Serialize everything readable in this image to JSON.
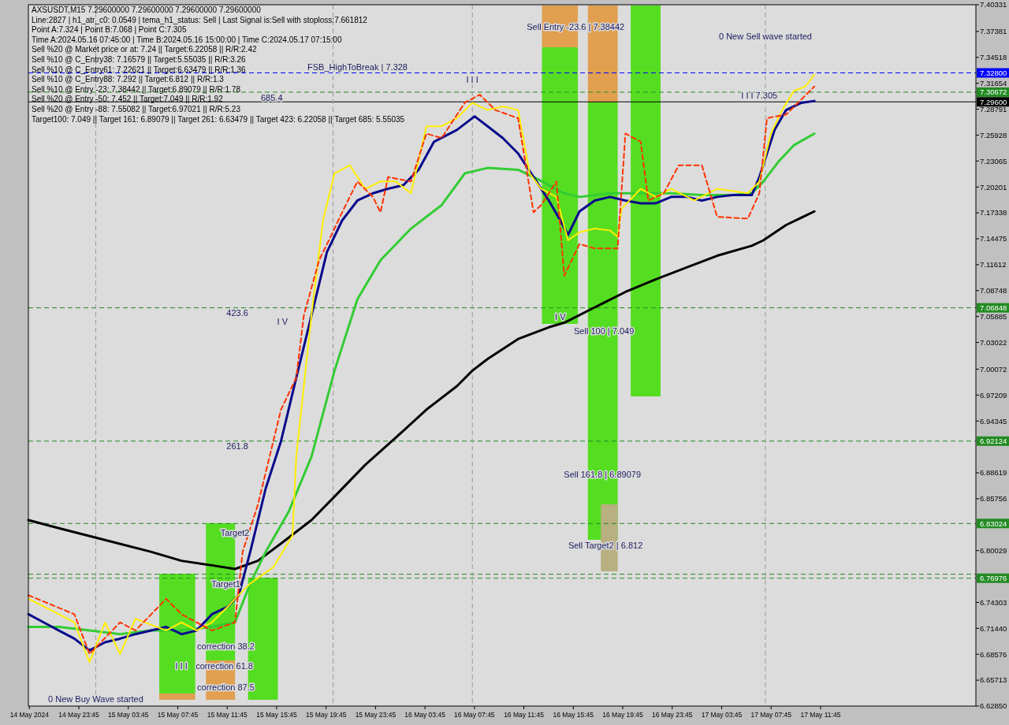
{
  "chart_data": {
    "type": "line",
    "title": "AXSUSDT,M15  7.29600000 7.29600000 7.29600000 7.29600000",
    "xlim": [
      "2024-05-14T19:40",
      "2024-05-18T00:19"
    ],
    "xticks": [
      {
        "value": "2024-05-14T19:45",
        "label": "14 May 2024"
      },
      {
        "value": "2024-05-14T23:45",
        "label": "14 May 23:45"
      },
      {
        "value": "2024-05-15T03:45",
        "label": "15 May 03:45"
      },
      {
        "value": "2024-05-15T07:45",
        "label": "15 May 07:45"
      },
      {
        "value": "2024-05-15T11:45",
        "label": "15 May 11:45"
      },
      {
        "value": "2024-05-15T15:45",
        "label": "15 May 15:45"
      },
      {
        "value": "2024-05-15T19:45",
        "label": "15 May 19:45"
      },
      {
        "value": "2024-05-15T23:45",
        "label": "15 May 23:45"
      },
      {
        "value": "2024-05-16T03:45",
        "label": "16 May 03:45"
      },
      {
        "value": "2024-05-16T07:45",
        "label": "16 May 07:45"
      },
      {
        "value": "2024-05-16T11:45",
        "label": "16 May 11:45"
      },
      {
        "value": "2024-05-16T15:45",
        "label": "16 May 15:45"
      },
      {
        "value": "2024-05-16T19:45",
        "label": "16 May 19:45"
      },
      {
        "value": "2024-05-16T23:45",
        "label": "16 May 23:45"
      },
      {
        "value": "2024-05-17T03:45",
        "label": "17 May 03:45"
      },
      {
        "value": "2024-05-17T07:45",
        "label": "17 May 07:45"
      },
      {
        "value": "2024-05-17T11:45",
        "label": "17 May 11:45"
      }
    ],
    "ylim": [
      6.6285,
      7.40331
    ],
    "yticks": [
      7.40331,
      7.37381,
      7.34518,
      7.31654,
      7.28791,
      7.25928,
      7.23065,
      7.20201,
      7.17338,
      7.14475,
      7.11612,
      7.08748,
      7.05885,
      7.03022,
      7.00072,
      6.97209,
      6.94345,
      6.88619,
      6.85756,
      6.80029,
      6.74303,
      {
        "value": 6.7144,
        "label": "6.71440"
      },
      6.68576,
      6.65713,
      {
        "value": 6.6285,
        "label": "6.62850"
      }
    ],
    "grid": false,
    "line_style": "solid",
    "series": [
      {
        "color": "#000000",
        "x": [
          "2024-05-14T19:40",
          "2024-05-14T22:08",
          "2024-05-15T01:52",
          "2024-05-15T05:34",
          "2024-05-15T08:03",
          "2024-05-15T10:31",
          "2024-05-15T12:23",
          "2024-05-15T14:14",
          "2024-05-15T16:06",
          "2024-05-15T18:34",
          "2024-05-15T20:26",
          "2024-05-15T22:55",
          "2024-05-16T01:23",
          "2024-05-16T03:52",
          "2024-05-16T06:20",
          "2024-05-16T07:35",
          "2024-05-16T08:49",
          "2024-05-16T11:17",
          "2024-05-16T13:46",
          "2024-05-16T15:01",
          "2024-05-16T17:29",
          "2024-05-16T19:58",
          "2024-05-16T22:26",
          "2024-05-17T00:55",
          "2024-05-17T03:23",
          "2024-05-17T06:11",
          "2024-05-17T07:07",
          "2024-05-17T08:58",
          "2024-05-17T11:15"
        ],
        "values": [
          6.834,
          6.825,
          6.812,
          6.799,
          6.789,
          6.784,
          6.78,
          6.789,
          6.808,
          6.834,
          6.86,
          6.895,
          6.925,
          6.956,
          6.982,
          6.999,
          7.012,
          7.034,
          7.047,
          7.052,
          7.069,
          7.086,
          7.1,
          7.113,
          7.126,
          7.137,
          7.143,
          7.16,
          7.175
        ]
      },
      {
        "color": "#33cc33",
        "x": [
          "2024-05-14T19:40",
          "2024-05-14T22:08",
          "2024-05-15T00:37",
          "2024-05-15T03:05",
          "2024-05-15T05:34",
          "2024-05-15T08:03",
          "2024-05-15T10:31",
          "2024-05-15T12:23",
          "2024-05-15T13:37",
          "2024-05-15T14:52",
          "2024-05-15T16:43",
          "2024-05-15T18:34",
          "2024-05-15T20:26",
          "2024-05-15T22:17",
          "2024-05-16T00:09",
          "2024-05-16T02:37",
          "2024-05-16T05:06",
          "2024-05-16T06:58",
          "2024-05-16T08:49",
          "2024-05-16T11:17",
          "2024-05-16T12:32",
          "2024-05-16T13:46",
          "2024-05-16T15:01",
          "2024-05-16T16:15",
          "2024-05-16T18:43",
          "2024-05-16T21:12",
          "2024-05-16T23:40",
          "2024-05-17T02:09",
          "2024-05-17T04:38",
          "2024-05-17T06:11",
          "2024-05-17T07:07",
          "2024-05-17T08:21",
          "2024-05-17T09:35",
          "2024-05-17T11:15"
        ],
        "values": [
          6.716,
          6.716,
          6.712,
          6.708,
          6.712,
          6.712,
          6.716,
          6.721,
          6.764,
          6.799,
          6.843,
          6.904,
          6.999,
          7.078,
          7.121,
          7.156,
          7.182,
          7.217,
          7.223,
          7.221,
          7.213,
          7.204,
          7.195,
          7.191,
          7.195,
          7.195,
          7.195,
          7.193,
          7.193,
          7.195,
          7.208,
          7.23,
          7.248,
          7.261
        ]
      },
      {
        "color": "#0a0a8c",
        "x": [
          "2024-05-14T19:40",
          "2024-05-14T20:54",
          "2024-05-14T22:08",
          "2024-05-14T23:23",
          "2024-05-15T00:37",
          "2024-05-15T01:52",
          "2024-05-15T03:05",
          "2024-05-15T04:20",
          "2024-05-15T06:49",
          "2024-05-15T08:03",
          "2024-05-15T09:17",
          "2024-05-15T10:31",
          "2024-05-15T11:46",
          "2024-05-15T12:41",
          "2024-05-15T13:37",
          "2024-05-15T14:52",
          "2024-05-15T16:06",
          "2024-05-15T17:20",
          "2024-05-15T18:34",
          "2024-05-15T19:49",
          "2024-05-15T21:03",
          "2024-05-15T22:17",
          "2024-05-15T23:32",
          "2024-05-16T00:46",
          "2024-05-16T02:00",
          "2024-05-16T03:14",
          "2024-05-16T04:29",
          "2024-05-16T06:20",
          "2024-05-16T07:46",
          "2024-05-16T08:49",
          "2024-05-16T10:03",
          "2024-05-16T11:17",
          "2024-05-16T12:32",
          "2024-05-16T13:46",
          "2024-05-16T14:42",
          "2024-05-16T15:19",
          "2024-05-16T16:15",
          "2024-05-16T17:29",
          "2024-05-16T18:43",
          "2024-05-16T19:58",
          "2024-05-16T21:12",
          "2024-05-16T22:26",
          "2024-05-16T23:40",
          "2024-05-17T00:55",
          "2024-05-17T02:09",
          "2024-05-17T03:23",
          "2024-05-17T04:38",
          "2024-05-17T06:11",
          "2024-05-17T06:48",
          "2024-05-17T07:25",
          "2024-05-17T08:02",
          "2024-05-17T08:58",
          "2024-05-17T10:12",
          "2024-05-17T11:15"
        ],
        "values": [
          6.73,
          6.721,
          6.712,
          6.703,
          6.69,
          6.699,
          6.703,
          6.708,
          6.716,
          6.708,
          6.712,
          6.73,
          6.738,
          6.751,
          6.799,
          6.869,
          6.921,
          6.991,
          7.06,
          7.13,
          7.165,
          7.187,
          7.195,
          7.2,
          7.204,
          7.221,
          7.252,
          7.265,
          7.28,
          7.269,
          7.256,
          7.239,
          7.213,
          7.187,
          7.165,
          7.149,
          7.175,
          7.187,
          7.191,
          7.187,
          7.184,
          7.184,
          7.191,
          7.191,
          7.187,
          7.191,
          7.193,
          7.193,
          7.213,
          7.239,
          7.265,
          7.287,
          7.295,
          7.297
        ]
      },
      {
        "color": "#ffee00",
        "x": [
          "2024-05-14T19:40",
          "2024-05-14T22:08",
          "2024-05-14T23:23",
          "2024-05-15T00:37",
          "2024-05-15T01:52",
          "2024-05-15T03:05",
          "2024-05-15T04:20",
          "2024-05-15T06:49",
          "2024-05-15T08:03",
          "2024-05-15T09:17",
          "2024-05-15T10:31",
          "2024-05-15T11:46",
          "2024-05-15T12:23",
          "2024-05-15T13:37",
          "2024-05-15T15:29",
          "2024-05-15T17:02",
          "2024-05-15T17:20",
          "2024-05-15T18:34",
          "2024-05-15T19:30",
          "2024-05-15T20:26",
          "2024-05-15T21:40",
          "2024-05-15T22:55",
          "2024-05-16T00:09",
          "2024-05-16T01:23",
          "2024-05-16T02:37",
          "2024-05-16T03:52",
          "2024-05-16T05:06",
          "2024-05-16T06:20",
          "2024-05-16T07:35",
          "2024-05-16T08:49",
          "2024-05-16T10:03",
          "2024-05-16T11:17",
          "2024-05-16T12:13",
          "2024-05-16T13:09",
          "2024-05-16T14:23",
          "2024-05-16T15:19",
          "2024-05-16T16:15",
          "2024-05-16T17:29",
          "2024-05-16T18:43",
          "2024-05-16T19:20",
          "2024-05-16T19:39",
          "2024-05-16T20:35",
          "2024-05-16T21:12",
          "2024-05-16T22:26",
          "2024-05-16T23:40",
          "2024-05-17T01:32",
          "2024-05-17T03:23",
          "2024-05-17T05:52",
          "2024-05-17T06:48",
          "2024-05-17T07:44",
          "2024-05-17T08:39",
          "2024-05-17T09:35",
          "2024-05-17T10:31",
          "2024-05-17T11:15"
        ],
        "values": [
          6.747,
          6.73,
          6.721,
          6.677,
          6.721,
          6.686,
          6.725,
          6.712,
          6.721,
          6.712,
          6.721,
          6.738,
          6.747,
          6.764,
          6.782,
          6.817,
          6.904,
          7.06,
          7.165,
          7.217,
          7.226,
          7.2,
          7.208,
          7.208,
          7.195,
          7.269,
          7.269,
          7.278,
          7.295,
          7.287,
          7.291,
          7.287,
          7.217,
          7.2,
          7.191,
          7.143,
          7.152,
          7.156,
          7.154,
          7.147,
          7.178,
          7.191,
          7.2,
          7.191,
          7.2,
          7.187,
          7.2,
          7.195,
          7.208,
          7.261,
          7.287,
          7.308,
          7.313,
          7.326
        ]
      },
      {
        "color": "#ff3300",
        "line_style": "dashed",
        "x": [
          "2024-05-14T19:40",
          "2024-05-14T23:23",
          "2024-05-15T00:37",
          "2024-05-15T03:05",
          "2024-05-15T04:20",
          "2024-05-15T06:49",
          "2024-05-15T08:03",
          "2024-05-15T10:31",
          "2024-05-15T12:23",
          "2024-05-15T13:00",
          "2024-05-15T14:14",
          "2024-05-15T16:06",
          "2024-05-15T17:20",
          "2024-05-15T17:57",
          "2024-05-15T19:11",
          "2024-05-15T20:07",
          "2024-05-15T21:03",
          "2024-05-15T22:17",
          "2024-05-15T23:32",
          "2024-05-16T00:09",
          "2024-05-16T00:46",
          "2024-05-16T02:37",
          "2024-05-16T03:52",
          "2024-05-16T05:06",
          "2024-05-16T06:58",
          "2024-05-16T08:11",
          "2024-05-16T09:26",
          "2024-05-16T11:17",
          "2024-05-16T12:32",
          "2024-05-16T13:09",
          "2024-05-16T14:23",
          "2024-05-16T15:01",
          "2024-05-16T16:15",
          "2024-05-16T17:29",
          "2024-05-16T19:20",
          "2024-05-16T19:58",
          "2024-05-16T21:12",
          "2024-05-16T21:49",
          "2024-05-16T23:04",
          "2024-05-17T00:17",
          "2024-05-17T02:09",
          "2024-05-17T03:23",
          "2024-05-17T05:52",
          "2024-05-17T06:48",
          "2024-05-17T07:25",
          "2024-05-17T08:58",
          "2024-05-17T11:15"
        ],
        "values": [
          6.751,
          6.73,
          6.686,
          6.721,
          6.712,
          6.747,
          6.73,
          6.712,
          6.721,
          6.799,
          6.851,
          6.956,
          6.991,
          7.06,
          7.121,
          7.147,
          7.174,
          7.208,
          7.191,
          7.174,
          7.213,
          7.208,
          7.261,
          7.256,
          7.295,
          7.304,
          7.287,
          7.278,
          7.174,
          7.182,
          7.208,
          7.104,
          7.139,
          7.134,
          7.134,
          7.261,
          7.252,
          7.187,
          7.195,
          7.226,
          7.226,
          7.169,
          7.167,
          7.195,
          7.278,
          7.282,
          7.313
        ]
      }
    ],
    "ref_lines": [
      {
        "axis": "y",
        "value": 7.328,
        "label": "7.32800",
        "color": "#0000ff",
        "line_style": "dashed"
      },
      {
        "axis": "y",
        "value": 7.30672,
        "label": "7.30672",
        "color": "#228b22",
        "line_style": "dashed"
      },
      {
        "axis": "y",
        "value": 7.296,
        "label": "7.29600",
        "color": "#000000",
        "line_style": "solid"
      },
      {
        "axis": "y",
        "value": 7.06848,
        "label": "7.06848",
        "color": "#228b22",
        "line_style": "dashed"
      },
      {
        "axis": "y",
        "value": 6.92124,
        "label": "6.92124",
        "color": "#228b22",
        "line_style": "dashed"
      },
      {
        "axis": "y",
        "value": 6.83024,
        "label": "6.83024",
        "color": "#228b22",
        "line_style": "dashed"
      },
      {
        "axis": "y",
        "value": 6.7742,
        "color": "#228b22",
        "line_style": "dashed"
      },
      {
        "axis": "y",
        "value": 6.76976,
        "label": "6.76976",
        "color": "#228b22",
        "line_style": "dashed"
      },
      {
        "axis": "x",
        "value": "2024-05-15T01:07",
        "color": "#999999",
        "line_style": "dashed"
      },
      {
        "axis": "x",
        "value": "2024-05-15T20:19",
        "color": "#999999",
        "line_style": "dashed"
      },
      {
        "axis": "x",
        "value": "2024-05-16T07:35",
        "color": "#999999",
        "line_style": "dashed"
      },
      {
        "axis": "x",
        "value": "2024-05-17T07:17",
        "color": "#999999",
        "line_style": "dashed"
      }
    ],
    "annotations": [
      "Line:2827 | h1_atr_c0: 0.0549 | tema_h1_status: Sell | Last Signal is:Sell with stoploss:7.661812",
      "Point A:7.324 | Point B:7.068 | Point C:7.305",
      "Time A:2024.05.16 07:45:00 | Time B:2024.05.16 15:00:00 | Time C:2024.05.17 07:15:00",
      "Sell %20 @ Market price or at: 7.24 || Target:6.22058 || R/R:2.42",
      "Sell %10 @ C_Entry38: 7.16579 || Target:5.55035 || R/R:3.26",
      "Sell %10 @ C_Entry61: 7.22621 || Target:6.63479 || R/R:1.36",
      "Sell %10 @ C_Entry88: 7.292 || Target:6.812 || R/R:1.3",
      "Sell %10 @ Entry -23: 7.38442 || Target:6.89079 || R/R:1.78",
      "Sell %20 @ Entry -50: 7.452 || Target:7.049 || R/R:1.92",
      "Sell %20 @ Entry -88: 7.55082 || Target:6.97021 || R/R:5.23",
      "Target100: 7.049 || Target 161: 6.89079 || Target 261: 6.63479 || Target 423: 6.22058 || Target 685: 5.55035",
      "Sell Entry -23.6 | 7.38442",
      "0 New Sell wave started",
      "I I I 7.305",
      "685.4",
      "I I I",
      "423.6",
      "I V",
      "I V",
      "Sell 100 | 7.049",
      "261.8",
      "Sell 161.8 | 6.89079",
      "Sell Target2 | 6.812",
      "Target2",
      "Target1",
      "correction 38.2",
      "correction 61.8",
      "correction 87.5",
      "I I I",
      "0 New Buy Wave started",
      "FSB_HighToBreak | 7.328"
    ]
  }
}
